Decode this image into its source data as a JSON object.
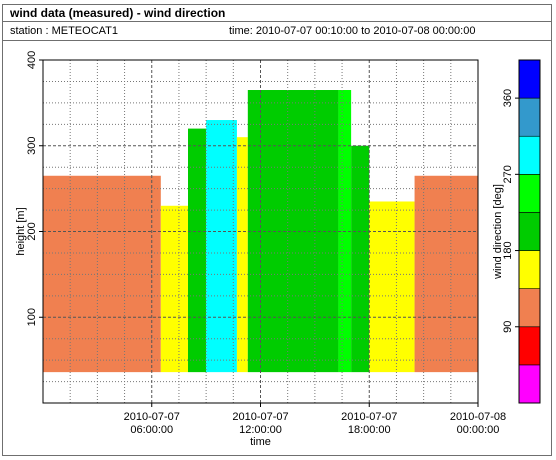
{
  "header": {
    "title": "wind data (measured) - wind direction",
    "station": "station : METEOCAT1",
    "time_range": "time: 2010-07-07 00:10:00 to 2010-07-08 00:00:00"
  },
  "chart_data": {
    "type": "heatmap",
    "xlabel": "time",
    "ylabel": "height [m]",
    "ylim": [
      0,
      400
    ],
    "xlim": [
      "2010-07-07 00:00:00",
      "2010-07-08 00:00:00"
    ],
    "y_ticks": [
      100,
      200,
      300,
      400
    ],
    "x_ticks": [
      {
        "value": "2010-07-07 06:00:00",
        "line1": "2010-07-07",
        "line2": "06:00:00"
      },
      {
        "value": "2010-07-07 12:00:00",
        "line1": "2010-07-07",
        "line2": "12:00:00"
      },
      {
        "value": "2010-07-07 18:00:00",
        "line1": "2010-07-07",
        "line2": "18:00:00"
      },
      {
        "value": "2010-07-08 00:00:00",
        "line1": "2010-07-08",
        "line2": "00:00:00"
      }
    ],
    "grid": true,
    "colorbar": {
      "label": "wind direction [deg]",
      "ticks": [
        90,
        180,
        270,
        360
      ],
      "range": [
        0,
        360
      ],
      "bins": [
        {
          "from": 0,
          "to": 45,
          "color": "#ff00ff"
        },
        {
          "from": 45,
          "to": 90,
          "color": "#ff0000"
        },
        {
          "from": 90,
          "to": 135,
          "color": "#f08050"
        },
        {
          "from": 135,
          "to": 180,
          "color": "#ffff00"
        },
        {
          "from": 180,
          "to": 225,
          "color": "#00cc00"
        },
        {
          "from": 225,
          "to": 270,
          "color": "#00ff00"
        },
        {
          "from": 270,
          "to": 315,
          "color": "#00ffff"
        },
        {
          "from": 315,
          "to": 360,
          "color": "#3399cc"
        },
        {
          "from": 360,
          "to": 405,
          "color": "#0000ff"
        }
      ]
    },
    "min_height": 36,
    "segments": [
      {
        "from_h": 0.0,
        "to_h": 6.5,
        "color": "#f08050",
        "top": 265
      },
      {
        "from_h": 6.5,
        "to_h": 8.0,
        "color": "#ffff00",
        "top": 230
      },
      {
        "from_h": 8.0,
        "to_h": 9.0,
        "color": "#00cc00",
        "top": 320
      },
      {
        "from_h": 9.0,
        "to_h": 10.7,
        "color": "#00ffff",
        "top": 330
      },
      {
        "from_h": 10.7,
        "to_h": 11.3,
        "color": "#ffff00",
        "top": 310
      },
      {
        "from_h": 11.3,
        "to_h": 16.3,
        "color": "#00cc00",
        "top": 365
      },
      {
        "from_h": 16.3,
        "to_h": 17.0,
        "color": "#00ff00",
        "top": 365
      },
      {
        "from_h": 17.0,
        "to_h": 18.0,
        "color": "#00cc00",
        "top": 300
      },
      {
        "from_h": 18.0,
        "to_h": 20.5,
        "color": "#ffff00",
        "top": 235
      },
      {
        "from_h": 20.5,
        "to_h": 24.0,
        "color": "#f08050",
        "top": 265
      }
    ]
  }
}
